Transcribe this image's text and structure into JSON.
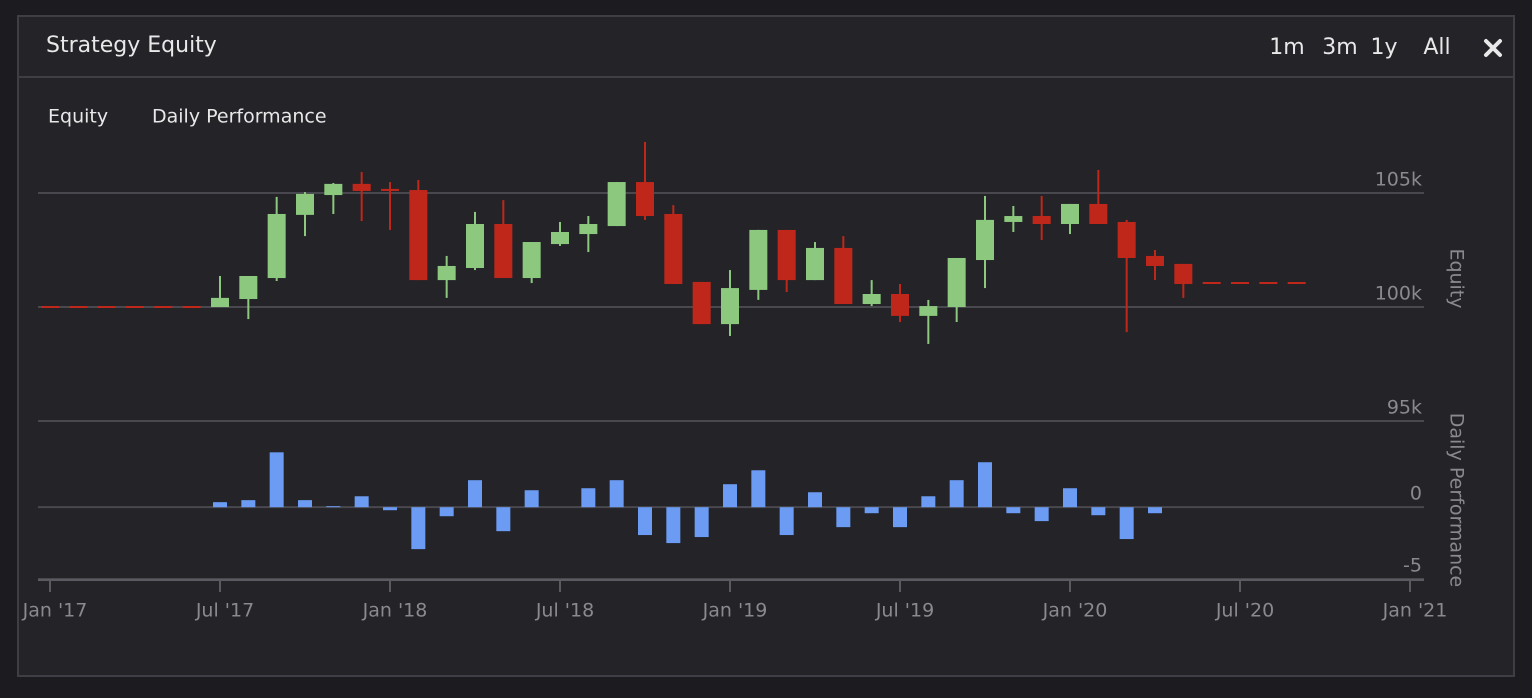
{
  "header": {
    "title": "Strategy Equity",
    "ranges": [
      "1m",
      "3m",
      "1y",
      "All"
    ]
  },
  "tabs": [
    "Equity",
    "Daily Performance"
  ],
  "chart_data": [
    {
      "type": "candlestick",
      "ylabel": "Equity",
      "x": [
        "2017-01",
        "2017-02",
        "2017-03",
        "2017-04",
        "2017-05",
        "2017-06",
        "2017-07",
        "2017-08",
        "2017-09",
        "2017-10",
        "2017-11",
        "2017-12",
        "2018-01",
        "2018-02",
        "2018-03",
        "2018-04",
        "2018-05",
        "2018-06",
        "2018-07",
        "2018-08",
        "2018-09",
        "2018-10",
        "2018-11",
        "2018-12",
        "2019-01",
        "2019-02",
        "2019-03",
        "2019-04",
        "2019-05",
        "2019-06",
        "2019-07",
        "2019-08",
        "2019-09",
        "2019-10",
        "2019-11",
        "2019-12",
        "2020-01",
        "2020-02",
        "2020-03",
        "2020-04",
        "2020-05",
        "2020-06",
        "2020-07",
        "2020-08",
        "2020-09"
      ],
      "open": [
        100000,
        100000,
        100000,
        100000,
        100000,
        100000,
        100000,
        100350,
        101270,
        104040,
        104910,
        105400,
        105180,
        105130,
        101180,
        101710,
        103640,
        101270,
        102760,
        103200,
        103550,
        105480,
        104080,
        101100,
        99250,
        100750,
        103380,
        101180,
        102590,
        100130,
        100570,
        99610,
        100000,
        102060,
        103730,
        103990,
        103640,
        104520,
        103730,
        102240,
        101890,
        101050,
        101050,
        101050,
        101050
      ],
      "high": [
        100000,
        100000,
        100000,
        100000,
        100000,
        100000,
        101360,
        101360,
        104830,
        105040,
        105440,
        105920,
        105480,
        105570,
        102240,
        104170,
        104690,
        102850,
        103730,
        103990,
        105480,
        107240,
        104470,
        101100,
        101620,
        103380,
        103380,
        102850,
        103110,
        101180,
        101010,
        100310,
        102150,
        104870,
        104430,
        104870,
        104520,
        106010,
        103820,
        102500,
        101890,
        101050,
        101050,
        101050,
        101050
      ],
      "low": [
        100000,
        100000,
        100000,
        100000,
        100000,
        100000,
        100000,
        99470,
        101140,
        103110,
        104080,
        103770,
        103380,
        101180,
        100400,
        101620,
        101270,
        101050,
        102680,
        102410,
        103550,
        103820,
        101010,
        99250,
        98730,
        100310,
        100660,
        101180,
        100130,
        100040,
        99340,
        98380,
        99340,
        100830,
        103290,
        102940,
        103200,
        103640,
        98900,
        101180,
        100400,
        101050,
        101050,
        101050,
        101050
      ],
      "close": [
        100000,
        100000,
        100000,
        100000,
        100000,
        100000,
        100400,
        101360,
        104080,
        104960,
        105400,
        105090,
        105090,
        101180,
        101800,
        103640,
        101270,
        102850,
        103290,
        103640,
        105480,
        103990,
        101010,
        99250,
        100830,
        103380,
        101180,
        102590,
        100130,
        100570,
        99610,
        100040,
        102150,
        103820,
        103990,
        103640,
        104520,
        103640,
        102150,
        101800,
        101010,
        101050,
        101050,
        101050,
        101050
      ],
      "up_color": "#8cc97e",
      "down_color": "#c0271b",
      "ylim": [
        95000,
        107500
      ],
      "yticks": [
        {
          "value": 95000,
          "label": "95k"
        },
        {
          "value": 100000,
          "label": "100k"
        },
        {
          "value": 105000,
          "label": "105k"
        }
      ],
      "grid": true
    },
    {
      "type": "bar",
      "ylabel": "Daily Performance",
      "x": [
        "2017-07",
        "2017-08",
        "2017-09",
        "2017-10",
        "2017-11",
        "2017-12",
        "2018-01",
        "2018-02",
        "2018-03",
        "2018-04",
        "2018-05",
        "2018-06",
        "2018-07",
        "2018-08",
        "2018-09",
        "2018-10",
        "2018-11",
        "2018-12",
        "2019-01",
        "2019-02",
        "2019-03",
        "2019-04",
        "2019-05",
        "2019-06",
        "2019-07",
        "2019-08",
        "2019-09",
        "2019-10",
        "2019-11",
        "2019-12",
        "2020-01",
        "2020-02",
        "2020-03",
        "2020-04",
        "2020-05"
      ],
      "values": [
        0.35,
        0.49,
        3.82,
        0.49,
        0.07,
        0.76,
        -0.21,
        -2.92,
        -0.63,
        1.88,
        -1.67,
        1.18,
        0,
        1.32,
        1.88,
        -1.94,
        -2.5,
        -2.08,
        1.6,
        2.57,
        -1.94,
        1.04,
        -1.39,
        -0.42,
        -1.39,
        0.76,
        1.88,
        3.13,
        -0.42,
        -0.97,
        1.32,
        -0.56,
        -2.22,
        -0.42,
        0
      ],
      "color": "#6b9bf2",
      "ylim": [
        -5,
        6
      ],
      "yticks": [
        0,
        -5
      ],
      "grid": true,
      "xticks": [
        {
          "value": "2017-01",
          "label": "Jan '17"
        },
        {
          "value": "2017-07",
          "label": "Jul '17"
        },
        {
          "value": "2018-01",
          "label": "Jan '18"
        },
        {
          "value": "2018-07",
          "label": "Jul '18"
        },
        {
          "value": "2019-01",
          "label": "Jan '19"
        },
        {
          "value": "2019-07",
          "label": "Jul '19"
        },
        {
          "value": "2020-01",
          "label": "Jan '20"
        },
        {
          "value": "2020-07",
          "label": "Jul '20"
        },
        {
          "value": "2021-01",
          "label": "Jan '21"
        }
      ]
    }
  ]
}
